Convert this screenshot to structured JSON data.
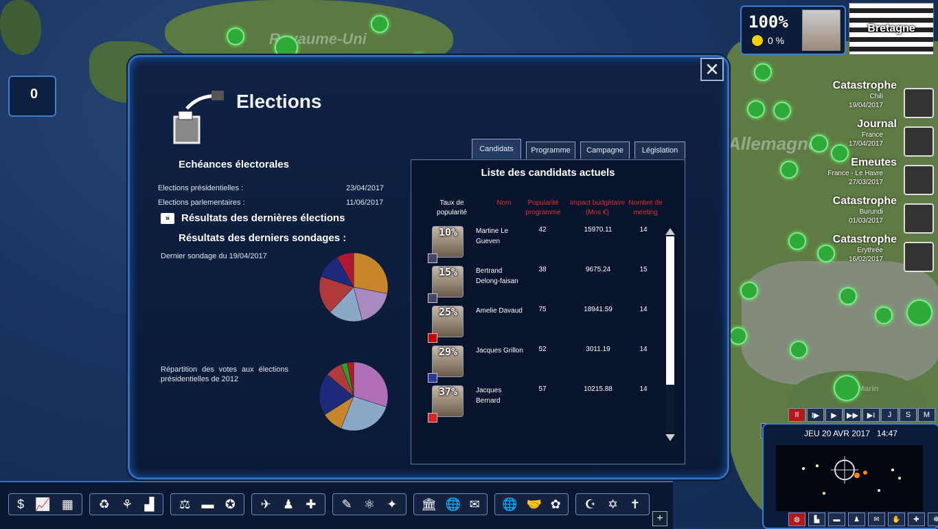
{
  "map": {
    "labels": [
      "Royaume-Uni",
      "Allemagne",
      "Marin"
    ]
  },
  "counter": {
    "value": "0"
  },
  "top_right": {
    "approval": "100%",
    "sub_value": "0 %",
    "region": "Bretagne"
  },
  "news": [
    {
      "title": "Catastrophe",
      "country": "Chili",
      "date": "19/04/2017"
    },
    {
      "title": "Journal",
      "country": "France",
      "date": "17/04/2017"
    },
    {
      "title": "Emeutes",
      "country": "France - Le Havre",
      "date": "27/03/2017"
    },
    {
      "title": "Catastrophe",
      "country": "Burundi",
      "date": "01/03/2017"
    },
    {
      "title": "Catastrophe",
      "country": "Erythrée",
      "date": "16/02/2017"
    }
  ],
  "modal": {
    "title": "Elections",
    "close": "✕",
    "echeances_title": "Echéances électorales",
    "presidentielles_label": "Elections présidentielles :",
    "presidentielles_date": "23/04/2017",
    "parlementaires_label": "Elections parlementaires :",
    "parlementaires_date": "11/06/2017",
    "resultats_elections": "Résultats des dernières élections",
    "resultats_sondages": "Résultats des derniers sondages :",
    "dernier_sondage": "Dernier sondage du 19/04/2017",
    "repartition": "Répartition des votes aux élections présidentielles de 2012",
    "arrow": "»"
  },
  "tabs": [
    "Candidats",
    "Programme",
    "Campagne",
    "Législation"
  ],
  "panel": {
    "title": "Liste des candidats actuels",
    "columns": [
      "Taux de popularité",
      "Nom",
      "Popularité programme",
      "Impact budgétaire (Mns €)",
      "Nombre de meeting"
    ]
  },
  "candidates": [
    {
      "score": "10%",
      "name": "Martine Le Gueven",
      "pop": "42",
      "impact": "15970.11",
      "meetings": "14"
    },
    {
      "score": "15%",
      "name": "Bertrand Delong-faisan",
      "pop": "38",
      "impact": "9675.24",
      "meetings": "15"
    },
    {
      "score": "25%",
      "name": "Amelie Davaud",
      "pop": "75",
      "impact": "18941.59",
      "meetings": "14"
    },
    {
      "score": "29%",
      "name": "Jacques Grillon",
      "pop": "52",
      "impact": "3011.19",
      "meetings": "14"
    },
    {
      "score": "37%",
      "name": "Jacques Bernard",
      "pop": "57",
      "impact": "10215.88",
      "meetings": "14"
    }
  ],
  "poll_pie": [
    {
      "share": 0.28,
      "color": "#c8862a"
    },
    {
      "share": 0.18,
      "color": "#a98ac0"
    },
    {
      "share": 0.16,
      "color": "#8aa8c8"
    },
    {
      "share": 0.18,
      "color": "#b03a3a"
    },
    {
      "share": 0.12,
      "color": "#1c2a7a"
    },
    {
      "share": 0.08,
      "color": "#b01830"
    }
  ],
  "votes_pie": [
    {
      "share": 0.3,
      "color": "#b070b8"
    },
    {
      "share": 0.26,
      "color": "#8aa8c8"
    },
    {
      "share": 0.1,
      "color": "#c8862a"
    },
    {
      "share": 0.2,
      "color": "#1c2a7a"
    },
    {
      "share": 0.08,
      "color": "#b03a3a"
    },
    {
      "share": 0.03,
      "color": "#2aa02a"
    },
    {
      "share": 0.03,
      "color": "#c01818"
    }
  ],
  "speed": [
    "II",
    "I▶",
    "▶",
    "▶▶",
    "▶I",
    "J",
    "S",
    "M"
  ],
  "minimap": {
    "date": "JEU 20 AVR 2017",
    "time": "14:47"
  },
  "minimap_icons": [
    "◍",
    "▙",
    "▬",
    "♟",
    "✉",
    "✋",
    "✚",
    "☸"
  ],
  "toolbar": [
    [
      "$",
      "📈",
      "▦"
    ],
    [
      "♻",
      "⚘",
      "▟"
    ],
    [
      "⚖",
      "▬",
      "✪"
    ],
    [
      "✈",
      "♟",
      "✚"
    ],
    [
      "✎",
      "⚛",
      "✦"
    ],
    [
      "🏛",
      "🌐",
      "✉"
    ],
    [
      "🌐",
      "🤝",
      "✿"
    ],
    [
      "☪",
      "✡",
      "✝"
    ]
  ]
}
